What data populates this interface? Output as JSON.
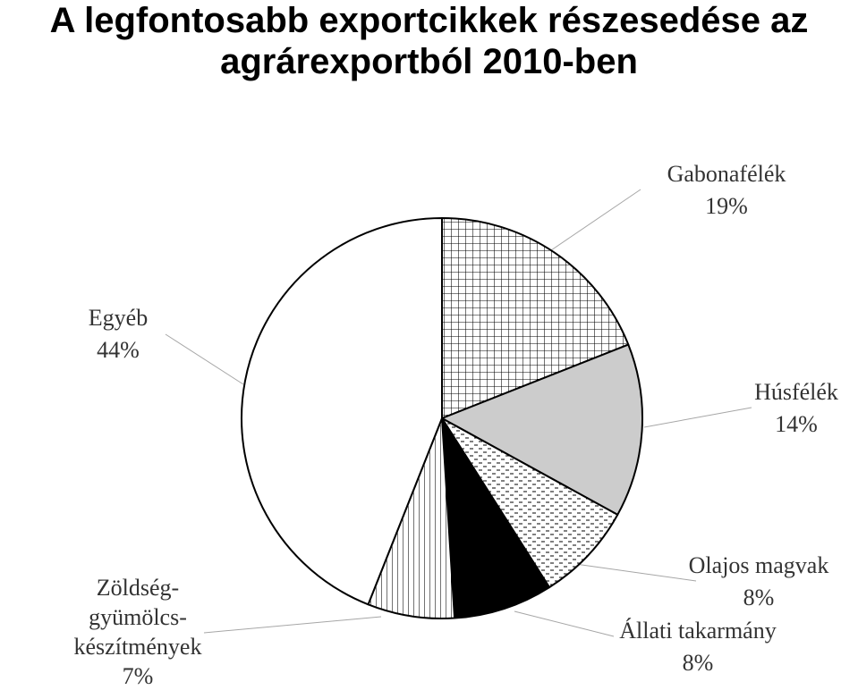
{
  "chart_data": {
    "type": "pie",
    "title": "A legfontosabb exportcikkek részesedése az\nagrárexportból 2010-ben",
    "slices": [
      {
        "label": "Gabonafélék",
        "value": 19,
        "value_label": "19%",
        "pattern": "grid",
        "label_lines": [
          "Gabonafélék",
          "19%"
        ]
      },
      {
        "label": "Húsfélék",
        "value": 14,
        "value_label": "14%",
        "pattern": "solid-gray",
        "color": "#cccccc",
        "label_lines": [
          "Húsfélék",
          "14%"
        ]
      },
      {
        "label": "Olajos magvak",
        "value": 8,
        "value_label": "8%",
        "pattern": "dashes",
        "label_lines": [
          "Olajos magvak",
          "8%"
        ]
      },
      {
        "label": "Állati takarmány",
        "value": 8,
        "value_label": "8%",
        "pattern": "solid-black",
        "color": "#000000",
        "label_lines": [
          "Állati takarmány",
          "8%"
        ]
      },
      {
        "label": "Zöldség-gyümölcskészítmények",
        "value": 7,
        "value_label": "7%",
        "pattern": "vertical-lines",
        "label_lines": [
          "Zöldség-",
          "gyümölcs-",
          "készítmények",
          "7%"
        ]
      },
      {
        "label": "Egyéb",
        "value": 44,
        "value_label": "44%",
        "pattern": "solid-white",
        "color": "#ffffff",
        "label_lines": [
          "Egyéb",
          "44%"
        ]
      }
    ],
    "start_angle": "12 o'clock",
    "direction": "clockwise",
    "legend": "none"
  }
}
